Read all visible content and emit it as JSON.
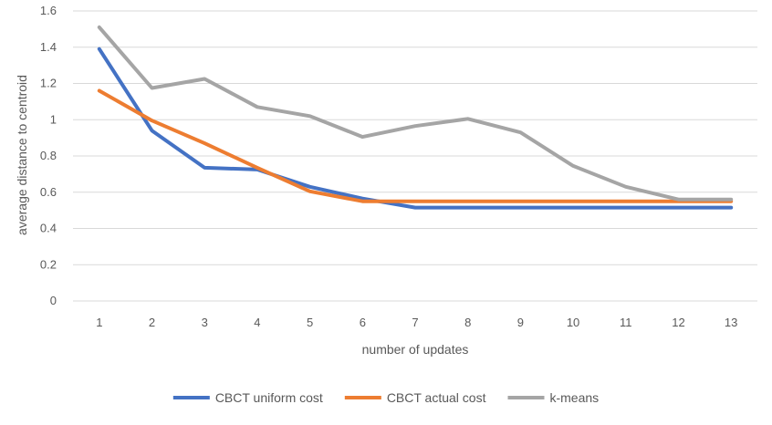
{
  "chart_data": {
    "type": "line",
    "title": "",
    "xlabel": "number of updates",
    "ylabel": "average distance to centroid",
    "categories": [
      "1",
      "2",
      "3",
      "4",
      "5",
      "6",
      "7",
      "8",
      "9",
      "10",
      "11",
      "12",
      "13"
    ],
    "yticks": [
      "0",
      "0.2",
      "0.4",
      "0.6",
      "0.8",
      "1",
      "1.2",
      "1.4",
      "1.6"
    ],
    "ylim": [
      0,
      1.6
    ],
    "grid": true,
    "legend_position": "bottom",
    "series": [
      {
        "name": "CBCT uniform cost",
        "color": "#4472c4",
        "values": [
          1.39,
          0.94,
          0.735,
          0.725,
          0.63,
          0.565,
          0.515,
          0.515,
          0.515,
          0.515,
          0.515,
          0.515,
          0.515
        ]
      },
      {
        "name": "CBCT actual cost",
        "color": "#ed7d31",
        "values": [
          1.16,
          0.995,
          0.87,
          0.735,
          0.605,
          0.55,
          0.55,
          0.55,
          0.55,
          0.55,
          0.55,
          0.55,
          0.55
        ]
      },
      {
        "name": "k-means",
        "color": "#a5a5a5",
        "values": [
          1.51,
          1.175,
          1.225,
          1.07,
          1.02,
          0.905,
          0.965,
          1.005,
          0.93,
          0.745,
          0.63,
          0.56,
          0.56
        ]
      }
    ]
  }
}
